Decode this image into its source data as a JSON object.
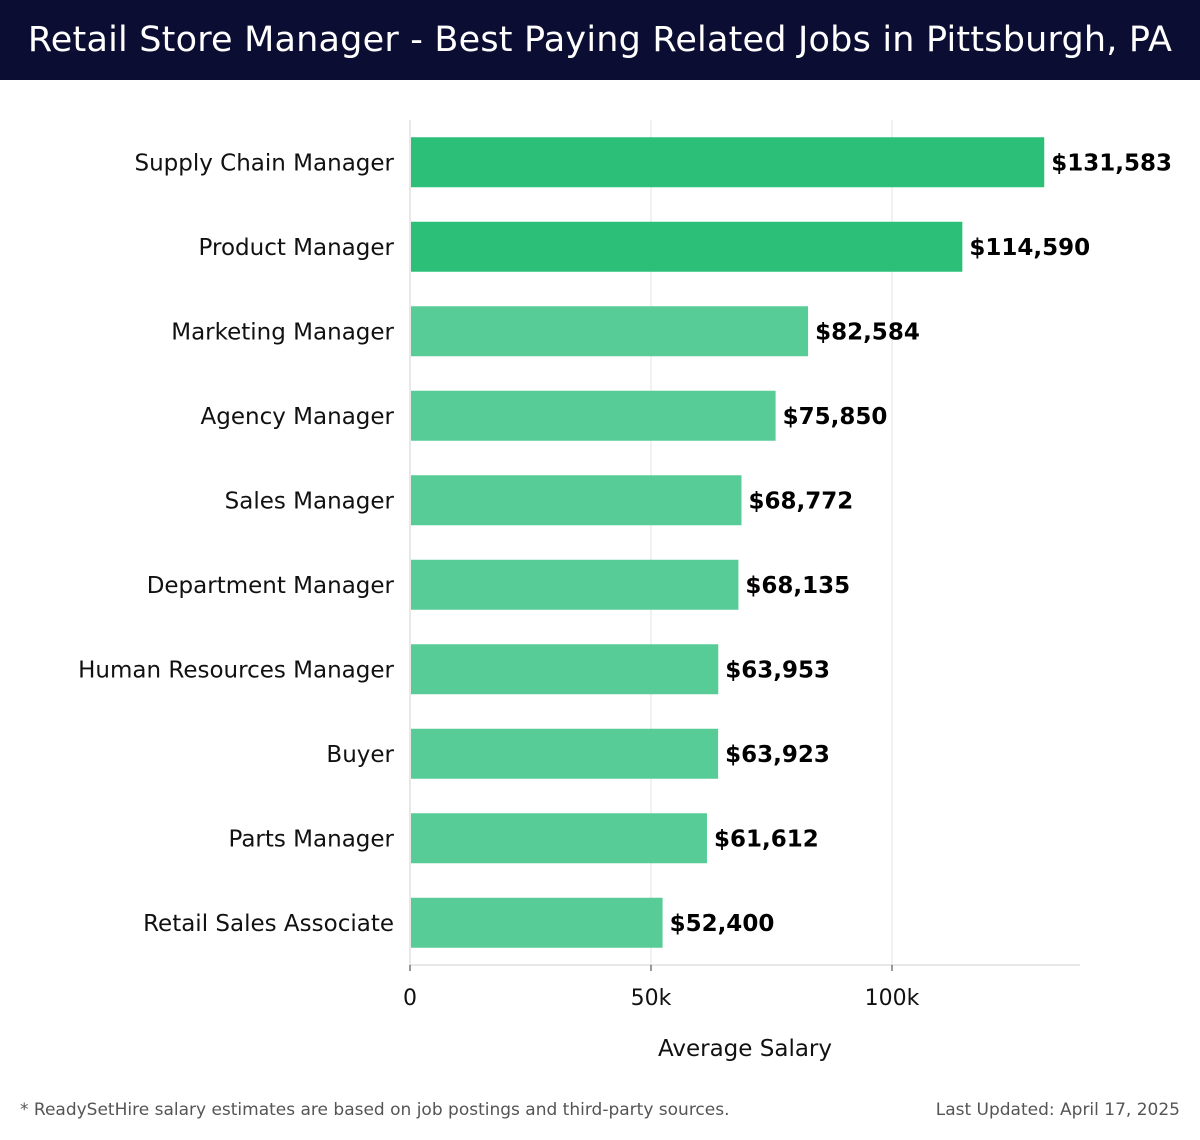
{
  "header": {
    "title": "Retail Store Manager - Best Paying Related Jobs in Pittsburgh, PA"
  },
  "footer": {
    "note": "* ReadySetHire salary estimates are based on job postings and third-party sources.",
    "last_updated": "Last Updated: April 17, 2025"
  },
  "colors": {
    "header_bg": "#0c0d33",
    "bar_top": "#2bbf78",
    "bar_light": "#58cc97",
    "grid": "#e3e3e3"
  },
  "chart_data": {
    "type": "bar",
    "orientation": "horizontal",
    "title": "Retail Store Manager - Best Paying Related Jobs in Pittsburgh, PA",
    "xlabel": "Average Salary",
    "ylabel": "",
    "xlim": [
      0,
      139000
    ],
    "x_ticks": [
      0,
      50000,
      100000
    ],
    "x_tick_labels": [
      "0",
      "50k",
      "100k"
    ],
    "grid": "vertical",
    "categories": [
      "Supply Chain Manager",
      "Product Manager",
      "Marketing Manager",
      "Agency Manager",
      "Sales Manager",
      "Department Manager",
      "Human Resources Manager",
      "Buyer",
      "Parts Manager",
      "Retail Sales Associate"
    ],
    "values": [
      131583,
      114590,
      82584,
      75850,
      68772,
      68135,
      63953,
      63923,
      61612,
      52400
    ],
    "value_labels": [
      "$131,583",
      "$114,590",
      "$82,584",
      "$75,850",
      "$68,772",
      "$68,135",
      "$63,953",
      "$63,923",
      "$61,612",
      "$52,400"
    ]
  }
}
